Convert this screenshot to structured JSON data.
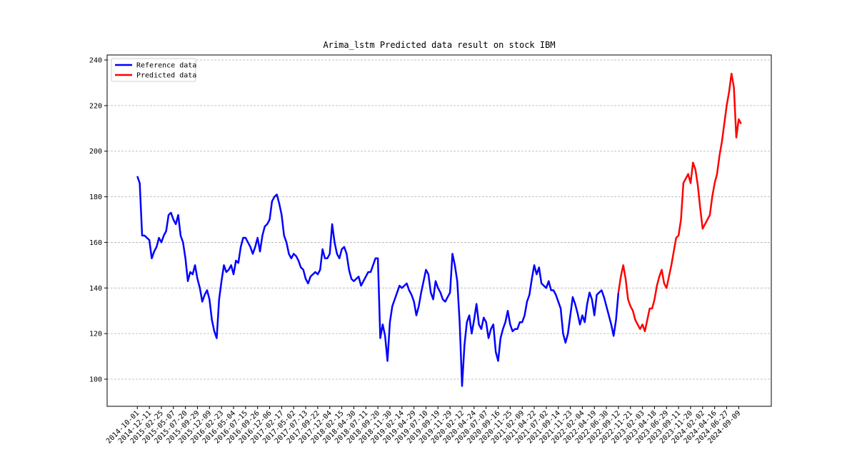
{
  "chart_data": {
    "type": "line",
    "title": "Arima_lstm Predicted data result on stock IBM",
    "categories": [
      "2014-10-01",
      null,
      null,
      null,
      null,
      "2014-12-11",
      null,
      null,
      null,
      null,
      "2015-02-25",
      null,
      null,
      null,
      null,
      "2015-05-07",
      null,
      null,
      null,
      null,
      "2015-07-20",
      null,
      null,
      null,
      null,
      "2015-09-29",
      null,
      null,
      null,
      null,
      "2015-12-09",
      null,
      null,
      null,
      null,
      "2016-02-23",
      null,
      null,
      null,
      null,
      "2016-05-04",
      null,
      null,
      null,
      null,
      "2016-07-15",
      null,
      null,
      null,
      null,
      "2016-09-26",
      null,
      null,
      null,
      null,
      "2016-12-06",
      null,
      null,
      null,
      null,
      "2017-02-17",
      null,
      null,
      null,
      null,
      "2017-05-02",
      null,
      null,
      null,
      null,
      "2017-07-13",
      null,
      null,
      null,
      null,
      "2017-09-22",
      null,
      null,
      null,
      null,
      "2017-12-04",
      null,
      null,
      null,
      null,
      "2018-02-15",
      null,
      null,
      null,
      null,
      "2018-04-30",
      null,
      null,
      null,
      null,
      "2018-07-11",
      null,
      null,
      null,
      null,
      "2018-09-20",
      null,
      null,
      null,
      null,
      "2018-11-30",
      null,
      null,
      null,
      null,
      "2019-02-14",
      null,
      null,
      null,
      null,
      "2019-04-29",
      null,
      null,
      null,
      null,
      "2019-07-10",
      null,
      null,
      null,
      null,
      "2019-09-19",
      null,
      null,
      null,
      null,
      "2019-11-29",
      null,
      null,
      null,
      null,
      "2020-02-12",
      null,
      null,
      null,
      null,
      "2020-04-24",
      null,
      null,
      null,
      null,
      "2020-07-07",
      null,
      null,
      null,
      null,
      "2020-09-16",
      null,
      null,
      null,
      null,
      "2020-11-25",
      null,
      null,
      null,
      null,
      "2021-02-09",
      null,
      null,
      null,
      null,
      "2021-04-22",
      null,
      null,
      null,
      null,
      "2021-07-02",
      null,
      null,
      null,
      null,
      "2021-09-14",
      null,
      null,
      null,
      null,
      "2021-11-23",
      null,
      null,
      null,
      null,
      "2022-02-04",
      null,
      null,
      null,
      null,
      "2022-04-19",
      null,
      null,
      null,
      null,
      "2022-06-30",
      null,
      null,
      null,
      null,
      "2022-09-12",
      null,
      null,
      null,
      null,
      "2022-11-21",
      null,
      null,
      null,
      null,
      "2023-02-03",
      null,
      null,
      null,
      null,
      "2023-04-18",
      null,
      null,
      null,
      null,
      "2023-06-29",
      null,
      null,
      null,
      null,
      "2023-09-11",
      null,
      null,
      null,
      null,
      "2023-11-20",
      null,
      null,
      null,
      null,
      "2024-02-02",
      null,
      null,
      null,
      null,
      "2024-04-16",
      null,
      null,
      null,
      null,
      "2024-06-27",
      null,
      null,
      null,
      null,
      "2024-09-09",
      null
    ],
    "series": [
      {
        "name": "Reference data",
        "color": "#0000ff",
        "values": [
          189,
          186,
          163,
          163,
          162,
          161,
          153,
          156,
          158,
          162,
          160,
          163,
          165,
          172,
          173,
          170,
          168,
          172,
          163,
          160,
          153,
          143,
          147,
          146,
          150,
          144,
          140,
          134,
          137,
          139,
          135,
          126,
          121,
          118,
          135,
          143,
          150,
          147,
          148,
          150,
          146,
          152,
          151,
          158,
          162,
          162,
          160,
          158,
          155,
          158,
          162,
          156,
          163,
          167,
          168,
          170,
          178,
          180,
          181,
          177,
          172,
          163,
          160,
          155,
          153,
          155,
          154,
          152,
          149,
          148,
          144,
          142,
          145,
          146,
          147,
          146,
          148,
          157,
          153,
          153,
          155,
          168,
          160,
          155,
          153,
          157,
          158,
          155,
          148,
          144,
          143,
          144,
          145,
          141,
          143,
          145,
          147,
          147,
          150,
          153,
          153,
          118,
          124,
          119,
          108,
          125,
          132,
          135,
          138,
          141,
          140,
          141,
          142,
          139,
          137,
          134,
          128,
          132,
          138,
          143,
          148,
          146,
          138,
          135,
          143,
          140,
          138,
          135,
          134,
          136,
          138,
          155,
          150,
          143,
          125,
          97,
          115,
          125,
          128,
          120,
          126,
          133,
          124,
          122,
          127,
          125,
          118,
          122,
          124,
          112,
          108,
          118,
          122,
          125,
          130,
          124,
          121,
          122,
          122,
          125,
          125,
          128,
          134,
          137,
          144,
          150,
          146,
          149,
          142,
          141,
          140,
          143,
          139,
          139,
          137,
          134,
          131,
          120,
          116,
          120,
          128,
          136,
          133,
          129,
          124,
          128,
          125,
          133,
          138,
          135,
          128,
          137,
          138,
          139,
          136,
          132,
          128,
          124,
          119,
          126,
          138,
          null,
          null,
          null,
          null,
          null,
          null,
          null,
          null,
          null,
          null,
          null,
          null,
          null,
          null,
          null,
          null,
          null,
          null,
          null,
          null,
          null,
          null,
          null,
          null,
          null,
          null,
          null,
          null,
          null,
          null,
          null,
          null,
          null,
          null,
          null,
          null,
          null,
          null,
          null,
          null,
          null,
          null,
          null,
          null,
          null,
          null,
          null,
          null,
          null,
          null,
          null
        ]
      },
      {
        "name": "Predicted data",
        "color": "#ff0000",
        "values": [
          null,
          null,
          null,
          null,
          null,
          null,
          null,
          null,
          null,
          null,
          null,
          null,
          null,
          null,
          null,
          null,
          null,
          null,
          null,
          null,
          null,
          null,
          null,
          null,
          null,
          null,
          null,
          null,
          null,
          null,
          null,
          null,
          null,
          null,
          null,
          null,
          null,
          null,
          null,
          null,
          null,
          null,
          null,
          null,
          null,
          null,
          null,
          null,
          null,
          null,
          null,
          null,
          null,
          null,
          null,
          null,
          null,
          null,
          null,
          null,
          null,
          null,
          null,
          null,
          null,
          null,
          null,
          null,
          null,
          null,
          null,
          null,
          null,
          null,
          null,
          null,
          null,
          null,
          null,
          null,
          null,
          null,
          null,
          null,
          null,
          null,
          null,
          null,
          null,
          null,
          null,
          null,
          null,
          null,
          null,
          null,
          null,
          null,
          null,
          null,
          null,
          null,
          null,
          null,
          null,
          null,
          null,
          null,
          null,
          null,
          null,
          null,
          null,
          null,
          null,
          null,
          null,
          null,
          null,
          null,
          null,
          null,
          null,
          null,
          null,
          null,
          null,
          null,
          null,
          null,
          null,
          null,
          null,
          null,
          null,
          null,
          null,
          null,
          null,
          null,
          null,
          null,
          null,
          null,
          null,
          null,
          null,
          null,
          null,
          null,
          null,
          null,
          null,
          null,
          null,
          null,
          null,
          null,
          null,
          null,
          null,
          null,
          null,
          null,
          null,
          null,
          null,
          null,
          null,
          null,
          null,
          null,
          null,
          null,
          null,
          null,
          null,
          null,
          null,
          null,
          null,
          null,
          null,
          null,
          null,
          null,
          null,
          null,
          null,
          null,
          null,
          null,
          null,
          null,
          null,
          null,
          null,
          null,
          null,
          null,
          138,
          145,
          150,
          144,
          135,
          132,
          130,
          126,
          124,
          122,
          124,
          121,
          126,
          131,
          131,
          135,
          141,
          145,
          148,
          142,
          140,
          145,
          150,
          156,
          162,
          163,
          170,
          186,
          188,
          190,
          186,
          195,
          192,
          185,
          175,
          166,
          168,
          170,
          172,
          180,
          186,
          190,
          198,
          204,
          212,
          220,
          226,
          234,
          228,
          206,
          214,
          212
        ]
      }
    ],
    "ylim": [
      88.1,
      242.2
    ],
    "yticks": [
      100,
      120,
      140,
      160,
      180,
      200,
      220,
      240
    ],
    "grid": true,
    "legend": "upper left"
  }
}
